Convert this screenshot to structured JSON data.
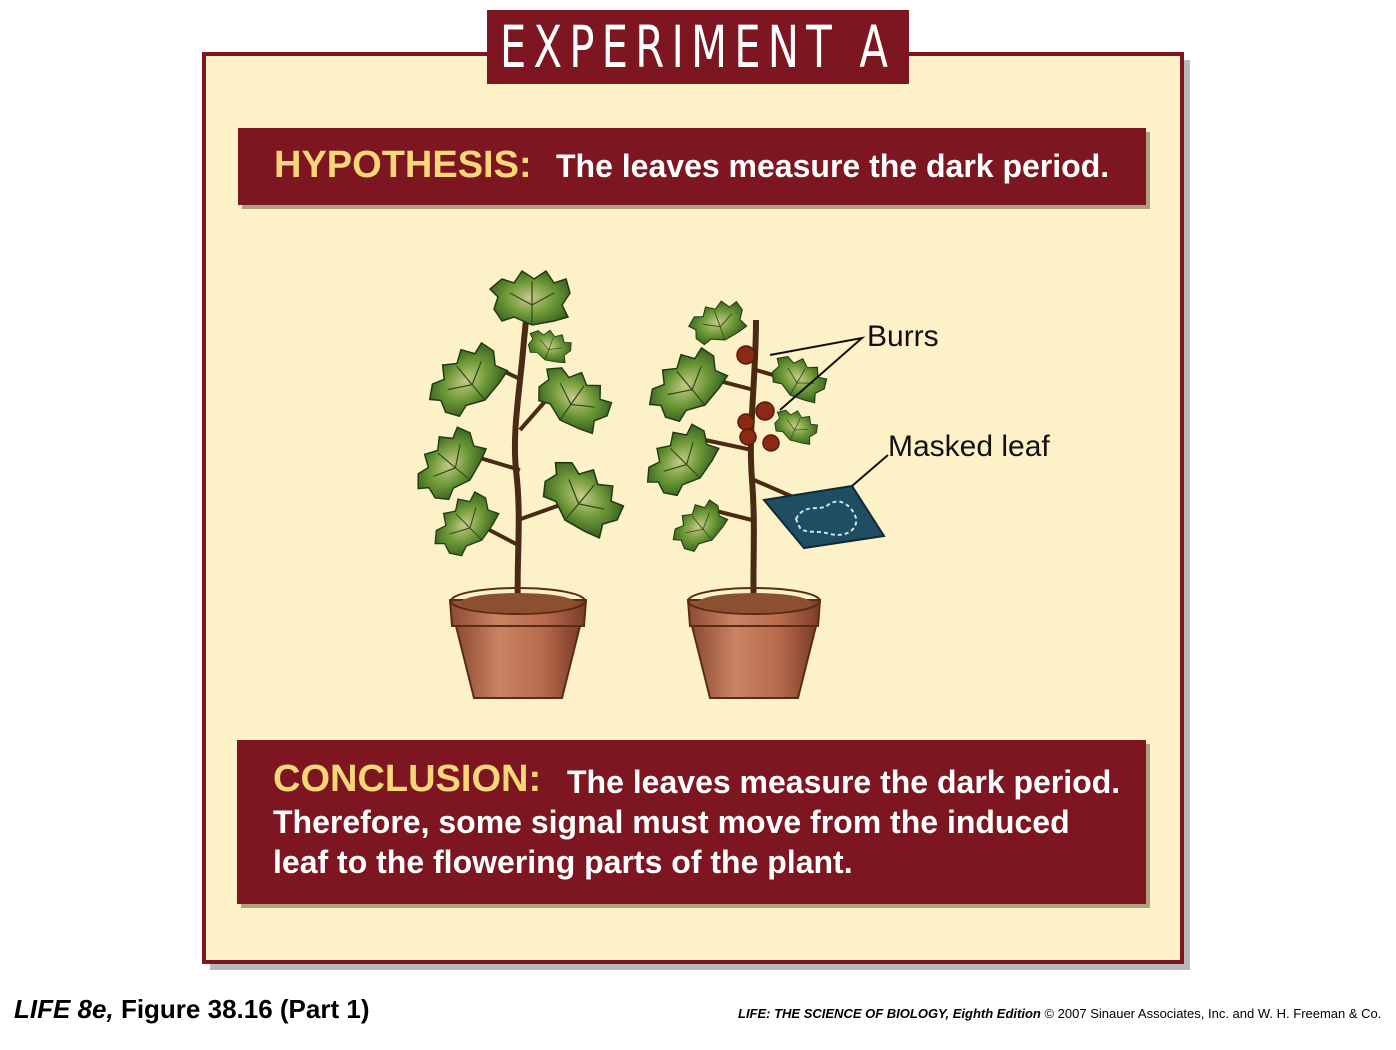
{
  "title": "EXPERIMENT A",
  "hypothesis": {
    "label": "HYPOTHESIS:",
    "text": "The leaves measure the dark period."
  },
  "labels": {
    "burrs": "Burrs",
    "masked_leaf": "Masked leaf"
  },
  "conclusion": {
    "label": "CONCLUSION:",
    "line1": "The leaves measure the dark period.",
    "line2": "Therefore, some signal must move from the induced",
    "line3": "leaf to the flowering parts of the plant."
  },
  "footer": {
    "figure_book": "LIFE 8e,",
    "figure_ref": "Figure 38.16 (Part 1)",
    "book_title": "LIFE: THE SCIENCE OF BIOLOGY, Eighth Edition",
    "copyright": "© 2007 Sinauer Associates, Inc. and W. H. Freeman & Co."
  },
  "colors": {
    "maroon": "#7d1621",
    "panel": "#fdf1c8",
    "label_yellow": "#f8d778",
    "leaf_green": "#5a8a2c",
    "pot": "#b86a4c",
    "mask": "#1f4e63"
  }
}
